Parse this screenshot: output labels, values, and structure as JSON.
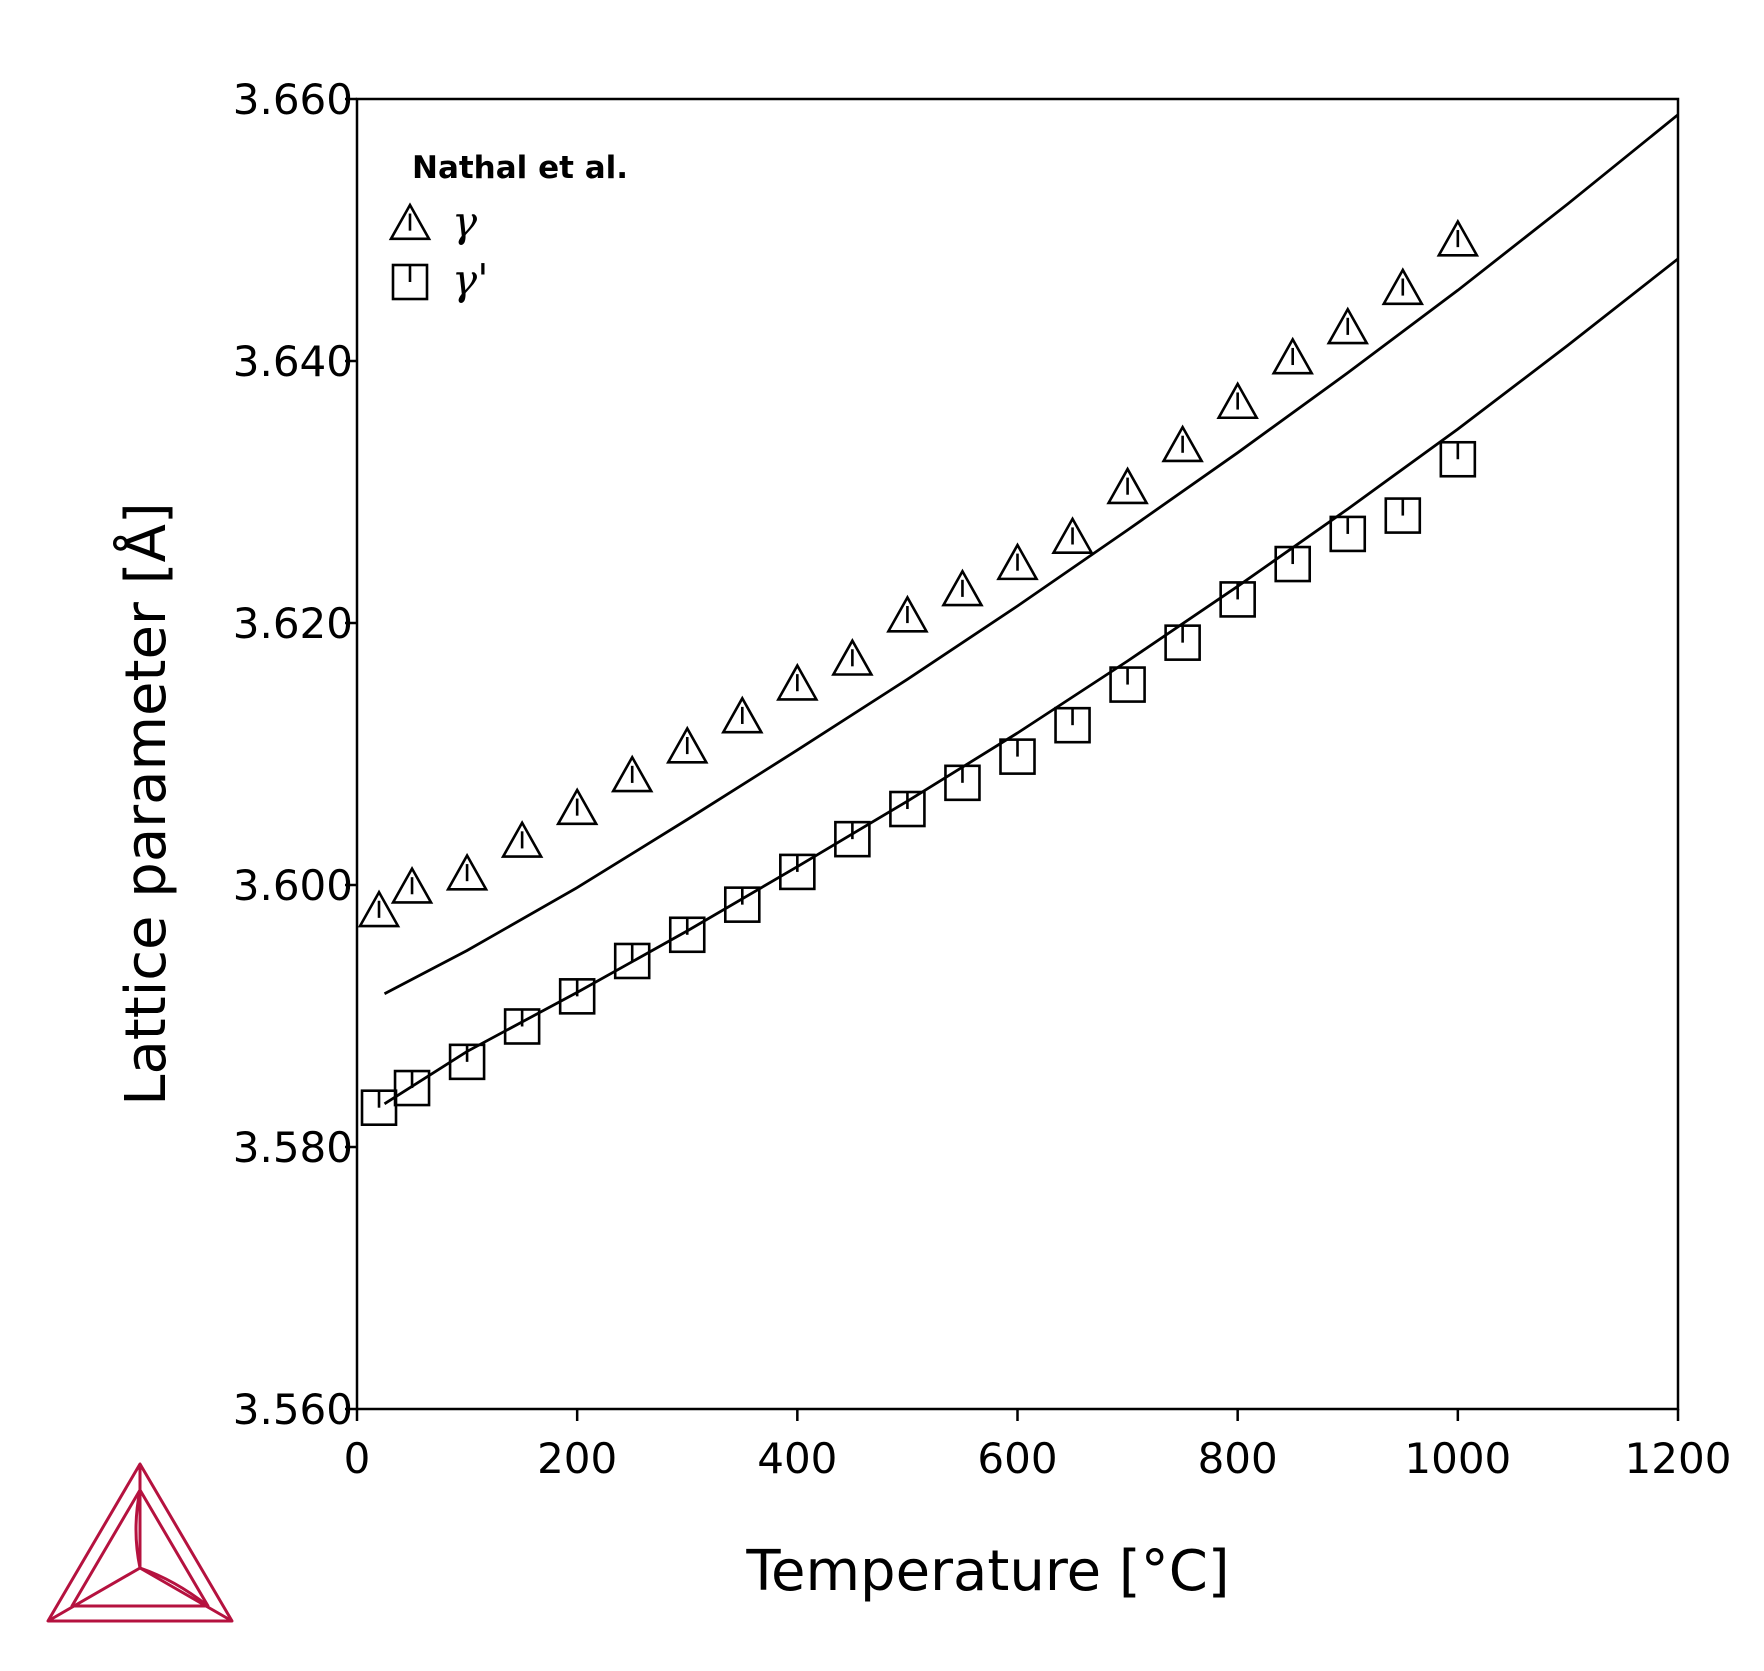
{
  "chart_data": {
    "type": "scatter",
    "xlabel": "Temperature [°C]",
    "ylabel": "Lattice parameter [Å]",
    "xlim": [
      0,
      1200
    ],
    "ylim": [
      3.56,
      3.66
    ],
    "xticks": [
      "0",
      "200",
      "400",
      "600",
      "800",
      "1000",
      "1200"
    ],
    "yticks": [
      "3.560",
      "3.580",
      "3.600",
      "3.620",
      "3.640",
      "3.660"
    ],
    "grid": false,
    "legend_title": "Nathal et al.",
    "legend_position": "top-left",
    "series": [
      {
        "name": "γ",
        "marker": "triangle",
        "x": [
          20,
          50,
          100,
          150,
          200,
          250,
          300,
          350,
          400,
          450,
          500,
          550,
          600,
          650,
          700,
          750,
          800,
          850,
          900,
          950,
          1000
        ],
        "y": [
          3.598,
          3.5998,
          3.6008,
          3.6033,
          3.6058,
          3.6083,
          3.6105,
          3.6128,
          3.6153,
          3.6172,
          3.6205,
          3.6225,
          3.6245,
          3.6265,
          3.6303,
          3.6335,
          3.6368,
          3.6402,
          3.6425,
          3.6455,
          3.6492
        ]
      },
      {
        "name": "γ'",
        "marker": "square",
        "x": [
          20,
          50,
          100,
          150,
          200,
          250,
          300,
          350,
          400,
          450,
          500,
          550,
          600,
          650,
          700,
          750,
          800,
          850,
          900,
          950,
          1000
        ],
        "y": [
          3.583,
          3.5845,
          3.5865,
          3.5892,
          3.5915,
          3.5942,
          3.5962,
          3.5985,
          3.601,
          3.6035,
          3.6058,
          3.6078,
          3.6098,
          3.6122,
          3.6153,
          3.6185,
          3.6218,
          3.6245,
          3.6268,
          3.6282,
          3.6325
        ]
      }
    ],
    "calculated_lines": [
      {
        "x": [
          25,
          100,
          200,
          300,
          400,
          500,
          600,
          700,
          800,
          900,
          1000,
          1100,
          1200
        ],
        "y": [
          3.5917,
          3.595,
          3.5998,
          3.605,
          3.6103,
          3.6157,
          3.6213,
          3.6271,
          3.633,
          3.6391,
          3.6454,
          3.652,
          3.6588
        ]
      },
      {
        "x": [
          25,
          100,
          200,
          300,
          400,
          500,
          600,
          700,
          800,
          900,
          1000,
          1100,
          1200
        ],
        "y": [
          3.5833,
          3.5873,
          3.5918,
          3.5965,
          3.6014,
          3.6064,
          3.6116,
          3.6171,
          3.6228,
          3.6287,
          3.6348,
          3.6412,
          3.6478
        ]
      }
    ]
  },
  "logo": {
    "color": "#b5123f"
  }
}
